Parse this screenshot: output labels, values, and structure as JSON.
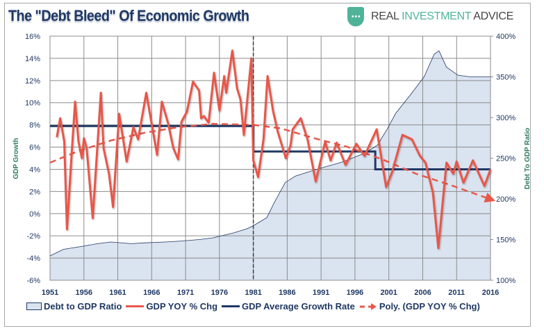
{
  "header": {
    "title": "The \"Debt Bleed\" Of Economic Growth",
    "logo_part1": "REAL ",
    "logo_part2": "INVESTMENT",
    "logo_part3": " ADVICE"
  },
  "colors": {
    "gdp": "#e8574a",
    "avg": "#1f3864",
    "debt_fill": "#dae3f0",
    "debt_line": "#1f3864",
    "trend": "#e8574a",
    "brand": "#4fb39a"
  },
  "chart_data": {
    "type": "line",
    "title": "The \"Debt Bleed\" Of Economic Growth",
    "ylabel": "GDP Growth",
    "y2label": "Debt To GDP Ratio",
    "xlim": [
      1951,
      2016
    ],
    "ylim": [
      -6,
      16
    ],
    "y2lim": [
      100,
      400
    ],
    "grid": true,
    "legend": "bottom",
    "x_ticks": [
      "1951",
      "1956",
      "1961",
      "1966",
      "1971",
      "1976",
      "1981",
      "1986",
      "1991",
      "1996",
      "2001",
      "2006",
      "2011",
      "2016"
    ],
    "y_ticks": [
      "-6%",
      "-4%",
      "-2%",
      "0%",
      "2%",
      "4%",
      "6%",
      "8%",
      "10%",
      "12%",
      "14%",
      "16%"
    ],
    "y2_ticks": [
      "100%",
      "150%",
      "200%",
      "250%",
      "300%",
      "350%",
      "400%"
    ],
    "vline_year": 1981,
    "series": [
      {
        "name": "Debt to GDP Ratio",
        "axis": "right",
        "kind": "area",
        "points": [
          [
            1951,
            130
          ],
          [
            1953,
            138
          ],
          [
            1956,
            142
          ],
          [
            1958,
            145
          ],
          [
            1960,
            147
          ],
          [
            1963,
            145
          ],
          [
            1965,
            146
          ],
          [
            1968,
            147
          ],
          [
            1970,
            148
          ],
          [
            1973,
            150
          ],
          [
            1975,
            152
          ],
          [
            1978,
            158
          ],
          [
            1980,
            163
          ],
          [
            1981,
            167
          ],
          [
            1982,
            172
          ],
          [
            1983,
            177
          ],
          [
            1984,
            194
          ],
          [
            1985.7,
            220
          ],
          [
            1987.2,
            228
          ],
          [
            1990.6,
            237
          ],
          [
            1994,
            245
          ],
          [
            1997.4,
            256
          ],
          [
            1999.3,
            266
          ],
          [
            2000.7,
            285
          ],
          [
            2002,
            305
          ],
          [
            2004.1,
            327
          ],
          [
            2006.2,
            350
          ],
          [
            2007.7,
            378
          ],
          [
            2008.4,
            382
          ],
          [
            2009.5,
            362
          ],
          [
            2011.2,
            352
          ],
          [
            2013,
            350
          ],
          [
            2016,
            350
          ]
        ]
      },
      {
        "name": "GDP YOY % Chg",
        "axis": "left",
        "kind": "line",
        "points": [
          [
            1952,
            6.9
          ],
          [
            1952.5,
            8.6
          ],
          [
            1953.1,
            6.5
          ],
          [
            1953.5,
            -1.4
          ],
          [
            1954.2,
            5.5
          ],
          [
            1954.7,
            10.1
          ],
          [
            1955.2,
            6.5
          ],
          [
            1955.7,
            5.0
          ],
          [
            1956,
            6.8
          ],
          [
            1956.4,
            5.9
          ],
          [
            1957.3,
            -0.4
          ],
          [
            1958.5,
            10.9
          ],
          [
            1958.9,
            5.9
          ],
          [
            1959.7,
            3.6
          ],
          [
            1960.3,
            0.6
          ],
          [
            1961.2,
            9.0
          ],
          [
            1962.3,
            4.7
          ],
          [
            1963.3,
            7.8
          ],
          [
            1964,
            6.7
          ],
          [
            1965.2,
            10.9
          ],
          [
            1966.8,
            5.3
          ],
          [
            1967.5,
            10.1
          ],
          [
            1968.4,
            8.2
          ],
          [
            1969.2,
            5.9
          ],
          [
            1969.9,
            4.9
          ],
          [
            1970.4,
            8.3
          ],
          [
            1971.2,
            9.2
          ],
          [
            1972.1,
            11.9
          ],
          [
            1973,
            11.1
          ],
          [
            1973.3,
            8.6
          ],
          [
            1973.7,
            8.8
          ],
          [
            1974.4,
            8.2
          ],
          [
            1975.2,
            12.7
          ],
          [
            1976,
            9.3
          ],
          [
            1976.7,
            12.4
          ],
          [
            1977,
            10.9
          ],
          [
            1977.9,
            14.7
          ],
          [
            1978.6,
            11.3
          ],
          [
            1979.1,
            10.3
          ],
          [
            1979.6,
            7.1
          ],
          [
            1980.7,
            14.0
          ],
          [
            1981,
            4.8
          ],
          [
            1981.7,
            3.3
          ],
          [
            1982.5,
            6.7
          ],
          [
            1983.1,
            12.4
          ],
          [
            1983.9,
            9.3
          ],
          [
            1984.6,
            7.4
          ],
          [
            1985.8,
            5.0
          ],
          [
            1986.5,
            6.2
          ],
          [
            1986.8,
            7.6
          ],
          [
            1988,
            8.6
          ],
          [
            1989,
            6.7
          ],
          [
            1990.2,
            2.9
          ],
          [
            1991.6,
            6.5
          ],
          [
            1992.4,
            4.8
          ],
          [
            1993.3,
            6.4
          ],
          [
            1994.6,
            4.4
          ],
          [
            1996.2,
            6.3
          ],
          [
            1997.4,
            5.2
          ],
          [
            1999.2,
            7.6
          ],
          [
            2000.6,
            2.4
          ],
          [
            2001.5,
            3.8
          ],
          [
            2003,
            7.1
          ],
          [
            2004.4,
            6.7
          ],
          [
            2005.6,
            5.2
          ],
          [
            2006.4,
            4.6
          ],
          [
            2007.5,
            1.9
          ],
          [
            2008.3,
            -3.1
          ],
          [
            2009.5,
            4.6
          ],
          [
            2010.5,
            3.6
          ],
          [
            2011,
            4.7
          ],
          [
            2012,
            2.8
          ],
          [
            2013.4,
            4.8
          ],
          [
            2015.1,
            2.5
          ],
          [
            2016,
            4.0
          ]
        ]
      },
      {
        "name": "GDP Average Growth Rate",
        "axis": "left",
        "kind": "step",
        "points": [
          [
            1951,
            7.9
          ],
          [
            1981,
            7.9
          ],
          [
            1981,
            5.6
          ],
          [
            1999,
            5.6
          ],
          [
            1999,
            4.0
          ],
          [
            2016,
            4.0
          ]
        ]
      },
      {
        "name": "Poly. (GDP YOY % Chg)",
        "axis": "left",
        "kind": "dashed-arrow",
        "points": [
          [
            1951,
            4.6
          ],
          [
            1955,
            5.6
          ],
          [
            1960,
            6.6
          ],
          [
            1965,
            7.3
          ],
          [
            1970,
            7.8
          ],
          [
            1975,
            8.1
          ],
          [
            1981,
            8.0
          ],
          [
            1985,
            7.7
          ],
          [
            1990,
            6.8
          ],
          [
            1995,
            6.0
          ],
          [
            2000,
            4.9
          ],
          [
            2005,
            3.6
          ],
          [
            2010,
            2.6
          ],
          [
            2016,
            1.3
          ]
        ]
      }
    ]
  }
}
